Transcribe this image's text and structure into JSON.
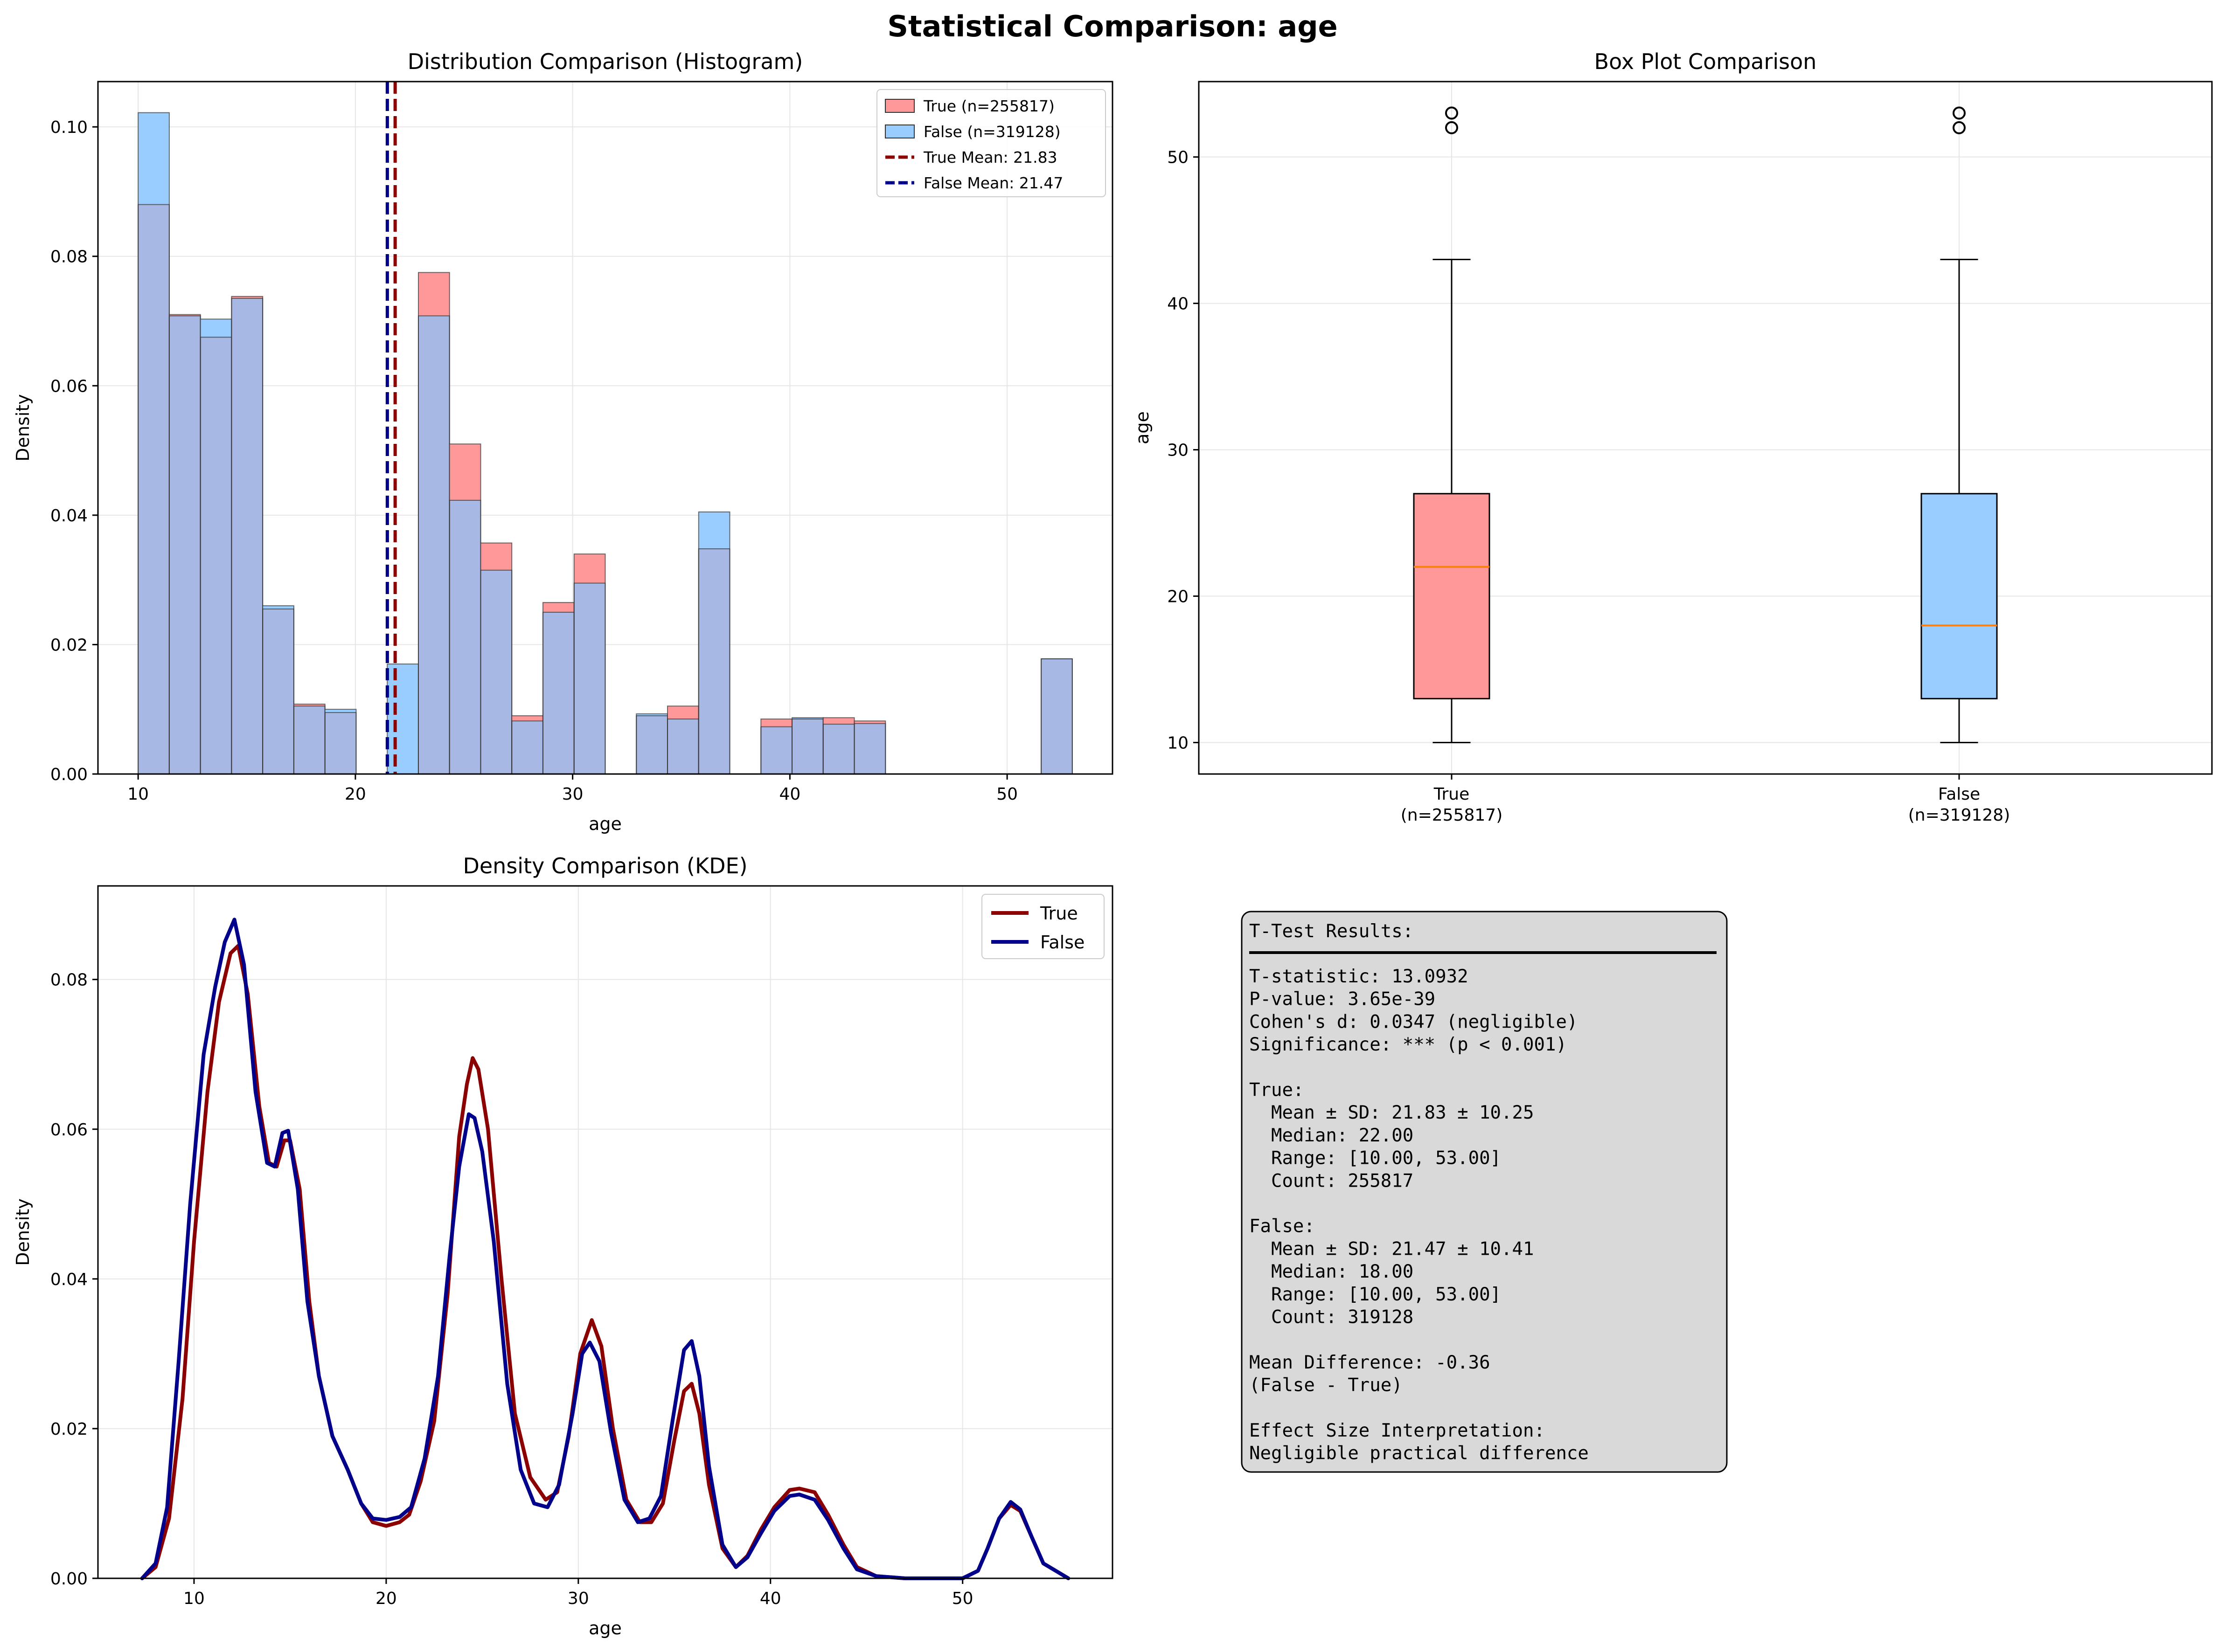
{
  "figure_title": "Statistical Comparison: age",
  "colors": {
    "true_fill": "#ff9999",
    "false_fill": "#99ccff",
    "overlap": "#a6b8e3",
    "true_line": "#8b0000",
    "false_line": "#00008b",
    "median": "#ff7f0e",
    "grid": "#e6e6e6",
    "stats_box": "#d9d9d9"
  },
  "chart_data": [
    {
      "type": "bar",
      "title": "Distribution Comparison (Histogram)",
      "xlabel": "age",
      "ylabel": "Density",
      "xlim": [
        8.15,
        54.85
      ],
      "ylim": [
        0,
        0.107
      ],
      "xticks": [
        10,
        20,
        30,
        40,
        50
      ],
      "xtick_labels": [
        "10",
        "20",
        "30",
        "40",
        "50"
      ],
      "yticks": [
        0,
        0.02,
        0.04,
        0.06,
        0.08,
        0.1
      ],
      "ytick_labels": [
        "0.00",
        "0.02",
        "0.04",
        "0.06",
        "0.08",
        "0.10"
      ],
      "grid": true,
      "legend_position": "top-right",
      "bin_edges": [
        10,
        11.433,
        12.867,
        14.3,
        15.733,
        17.167,
        18.6,
        20.033,
        21.467,
        22.9,
        24.333,
        25.767,
        27.2,
        28.633,
        30.067,
        31.5,
        32.933,
        34.367,
        35.8,
        37.233,
        38.667,
        40.1,
        41.533,
        42.967,
        44.4,
        45.833,
        47.267,
        48.7,
        50.133,
        51.567,
        53
      ],
      "series": [
        {
          "name": "True (n=255817)",
          "values": [
            0.088,
            0.071,
            0.0675,
            0.0738,
            0.0255,
            0.0108,
            0.0095,
            0,
            0,
            0.0775,
            0.051,
            0.0357,
            0.009,
            0.0265,
            0.034,
            0,
            0.009,
            0.0105,
            0.0348,
            0,
            0.0085,
            0.0085,
            0.0087,
            0.0082,
            0,
            0,
            0,
            0,
            0,
            0.0178
          ]
        },
        {
          "name": "False (n=319128)",
          "values": [
            0.1022,
            0.0708,
            0.0703,
            0.0735,
            0.026,
            0.0105,
            0.01,
            0,
            0.017,
            0.0708,
            0.0423,
            0.0315,
            0.0082,
            0.025,
            0.0295,
            0,
            0.0093,
            0.0085,
            0.0405,
            0,
            0.0073,
            0.0087,
            0.0077,
            0.0078,
            0,
            0,
            0,
            0,
            0,
            0.0178
          ]
        }
      ],
      "mean_lines": [
        {
          "name": "True Mean: 21.83",
          "value": 21.83
        },
        {
          "name": "False Mean: 21.47",
          "value": 21.47
        }
      ]
    },
    {
      "type": "box",
      "title": "Box Plot Comparison",
      "xlabel": "",
      "ylabel": "age",
      "ylim": [
        7.85,
        55.15
      ],
      "yticks": [
        10,
        20,
        30,
        40,
        50
      ],
      "ytick_labels": [
        "10",
        "20",
        "30",
        "40",
        "50"
      ],
      "grid": true,
      "categories": [
        "True\n(n=255817)",
        "False\n(n=319128)"
      ],
      "category_lines": [
        [
          "True",
          "(n=255817)"
        ],
        [
          "False",
          "(n=319128)"
        ]
      ],
      "boxes": [
        {
          "whisker_low": 10,
          "q1": 13,
          "median": 22,
          "q3": 27,
          "whisker_high": 43,
          "outliers": [
            52,
            53
          ]
        },
        {
          "whisker_low": 10,
          "q1": 13,
          "median": 18,
          "q3": 27,
          "whisker_high": 43,
          "outliers": [
            52,
            53
          ]
        }
      ]
    },
    {
      "type": "line",
      "title": "Density Comparison (KDE)",
      "xlabel": "age",
      "ylabel": "Density",
      "xlim": [
        5.0,
        57.8
      ],
      "ylim": [
        0,
        0.0925
      ],
      "xticks": [
        10,
        20,
        30,
        40,
        50
      ],
      "xtick_labels": [
        "10",
        "20",
        "30",
        "40",
        "50"
      ],
      "yticks": [
        0,
        0.02,
        0.04,
        0.06,
        0.08
      ],
      "ytick_labels": [
        "0.00",
        "0.02",
        "0.04",
        "0.06",
        "0.08"
      ],
      "grid": true,
      "legend_position": "top-right",
      "series": [
        {
          "name": "True",
          "points": [
            [
              7.3,
              0
            ],
            [
              8.0,
              0.0015
            ],
            [
              8.7,
              0.008
            ],
            [
              9.4,
              0.024
            ],
            [
              10.0,
              0.045
            ],
            [
              10.7,
              0.065
            ],
            [
              11.3,
              0.077
            ],
            [
              11.9,
              0.0835
            ],
            [
              12.3,
              0.0845
            ],
            [
              12.8,
              0.078
            ],
            [
              13.4,
              0.063
            ],
            [
              13.9,
              0.0555
            ],
            [
              14.3,
              0.055
            ],
            [
              14.7,
              0.0585
            ],
            [
              15.0,
              0.0585
            ],
            [
              15.5,
              0.052
            ],
            [
              16.0,
              0.037
            ],
            [
              16.5,
              0.027
            ],
            [
              17.2,
              0.019
            ],
            [
              18.0,
              0.0145
            ],
            [
              18.7,
              0.01
            ],
            [
              19.3,
              0.0075
            ],
            [
              20.0,
              0.007
            ],
            [
              20.7,
              0.0075
            ],
            [
              21.2,
              0.0085
            ],
            [
              21.8,
              0.013
            ],
            [
              22.5,
              0.021
            ],
            [
              23.2,
              0.038
            ],
            [
              23.8,
              0.059
            ],
            [
              24.2,
              0.066
            ],
            [
              24.5,
              0.0695
            ],
            [
              24.8,
              0.068
            ],
            [
              25.3,
              0.06
            ],
            [
              26.0,
              0.04
            ],
            [
              26.7,
              0.022
            ],
            [
              27.5,
              0.0135
            ],
            [
              28.3,
              0.0105
            ],
            [
              28.9,
              0.0115
            ],
            [
              29.5,
              0.019
            ],
            [
              30.1,
              0.03
            ],
            [
              30.7,
              0.0345
            ],
            [
              31.2,
              0.031
            ],
            [
              31.8,
              0.02
            ],
            [
              32.5,
              0.0105
            ],
            [
              33.2,
              0.0075
            ],
            [
              33.8,
              0.0075
            ],
            [
              34.4,
              0.01
            ],
            [
              35.0,
              0.0185
            ],
            [
              35.5,
              0.025
            ],
            [
              35.9,
              0.026
            ],
            [
              36.3,
              0.022
            ],
            [
              36.8,
              0.0125
            ],
            [
              37.5,
              0.004
            ],
            [
              38.2,
              0.0015
            ],
            [
              38.8,
              0.003
            ],
            [
              39.5,
              0.0065
            ],
            [
              40.2,
              0.0095
            ],
            [
              41.0,
              0.0118
            ],
            [
              41.5,
              0.012
            ],
            [
              42.3,
              0.0115
            ],
            [
              43.0,
              0.0085
            ],
            [
              43.8,
              0.0045
            ],
            [
              44.5,
              0.0015
            ],
            [
              45.5,
              0.0003
            ],
            [
              47,
              0
            ],
            [
              50,
              0
            ],
            [
              50.8,
              0.001
            ],
            [
              51.3,
              0.004
            ],
            [
              51.9,
              0.008
            ],
            [
              52.5,
              0.0098
            ],
            [
              53.0,
              0.009
            ],
            [
              53.6,
              0.0055
            ],
            [
              54.2,
              0.002
            ],
            [
              55.5,
              0
            ]
          ]
        },
        {
          "name": "False",
          "points": [
            [
              7.3,
              0
            ],
            [
              8.0,
              0.002
            ],
            [
              8.6,
              0.0095
            ],
            [
              9.2,
              0.029
            ],
            [
              9.8,
              0.05
            ],
            [
              10.5,
              0.07
            ],
            [
              11.1,
              0.079
            ],
            [
              11.6,
              0.085
            ],
            [
              12.1,
              0.088
            ],
            [
              12.6,
              0.082
            ],
            [
              13.2,
              0.065
            ],
            [
              13.8,
              0.0555
            ],
            [
              14.2,
              0.055
            ],
            [
              14.6,
              0.0595
            ],
            [
              14.9,
              0.0598
            ],
            [
              15.4,
              0.052
            ],
            [
              15.9,
              0.037
            ],
            [
              16.5,
              0.027
            ],
            [
              17.2,
              0.019
            ],
            [
              18.0,
              0.0145
            ],
            [
              18.7,
              0.01
            ],
            [
              19.3,
              0.008
            ],
            [
              20.0,
              0.0078
            ],
            [
              20.7,
              0.0082
            ],
            [
              21.3,
              0.0095
            ],
            [
              22.0,
              0.016
            ],
            [
              22.7,
              0.027
            ],
            [
              23.3,
              0.043
            ],
            [
              23.8,
              0.055
            ],
            [
              24.3,
              0.062
            ],
            [
              24.6,
              0.0615
            ],
            [
              25.0,
              0.057
            ],
            [
              25.6,
              0.045
            ],
            [
              26.3,
              0.026
            ],
            [
              27.0,
              0.0145
            ],
            [
              27.7,
              0.01
            ],
            [
              28.4,
              0.0095
            ],
            [
              29.0,
              0.0125
            ],
            [
              29.7,
              0.022
            ],
            [
              30.2,
              0.03
            ],
            [
              30.6,
              0.0315
            ],
            [
              31.1,
              0.029
            ],
            [
              31.7,
              0.0195
            ],
            [
              32.4,
              0.0105
            ],
            [
              33.1,
              0.0075
            ],
            [
              33.7,
              0.008
            ],
            [
              34.3,
              0.011
            ],
            [
              34.9,
              0.021
            ],
            [
              35.5,
              0.0305
            ],
            [
              35.9,
              0.0317
            ],
            [
              36.3,
              0.027
            ],
            [
              36.8,
              0.015
            ],
            [
              37.5,
              0.0045
            ],
            [
              38.2,
              0.0015
            ],
            [
              38.8,
              0.0028
            ],
            [
              39.5,
              0.006
            ],
            [
              40.2,
              0.009
            ],
            [
              41.0,
              0.011
            ],
            [
              41.5,
              0.0112
            ],
            [
              42.3,
              0.0105
            ],
            [
              43.0,
              0.0078
            ],
            [
              43.8,
              0.004
            ],
            [
              44.5,
              0.0012
            ],
            [
              45.5,
              0.0003
            ],
            [
              47,
              0
            ],
            [
              50,
              0
            ],
            [
              50.8,
              0.001
            ],
            [
              51.3,
              0.004
            ],
            [
              51.9,
              0.008
            ],
            [
              52.5,
              0.0102
            ],
            [
              53.0,
              0.0092
            ],
            [
              53.6,
              0.0055
            ],
            [
              54.2,
              0.002
            ],
            [
              55.5,
              0
            ]
          ]
        }
      ]
    }
  ],
  "stats_panel": {
    "lines": [
      "T-Test Results:",
      "",
      "T-statistic: 13.0932",
      "P-value: 3.65e-39",
      "Cohen's d: 0.0347 (negligible)",
      "Significance: *** (p < 0.001)",
      "",
      "True:",
      "  Mean ± SD: 21.83 ± 10.25",
      "  Median: 22.00",
      "  Range: [10.00, 53.00]",
      "  Count: 255817",
      "",
      "False:",
      "  Mean ± SD: 21.47 ± 10.41",
      "  Median: 18.00",
      "  Range: [10.00, 53.00]",
      "  Count: 319128",
      "",
      "Mean Difference: -0.36",
      "(False - True)",
      "",
      "Effect Size Interpretation:",
      "Negligible practical difference"
    ]
  }
}
